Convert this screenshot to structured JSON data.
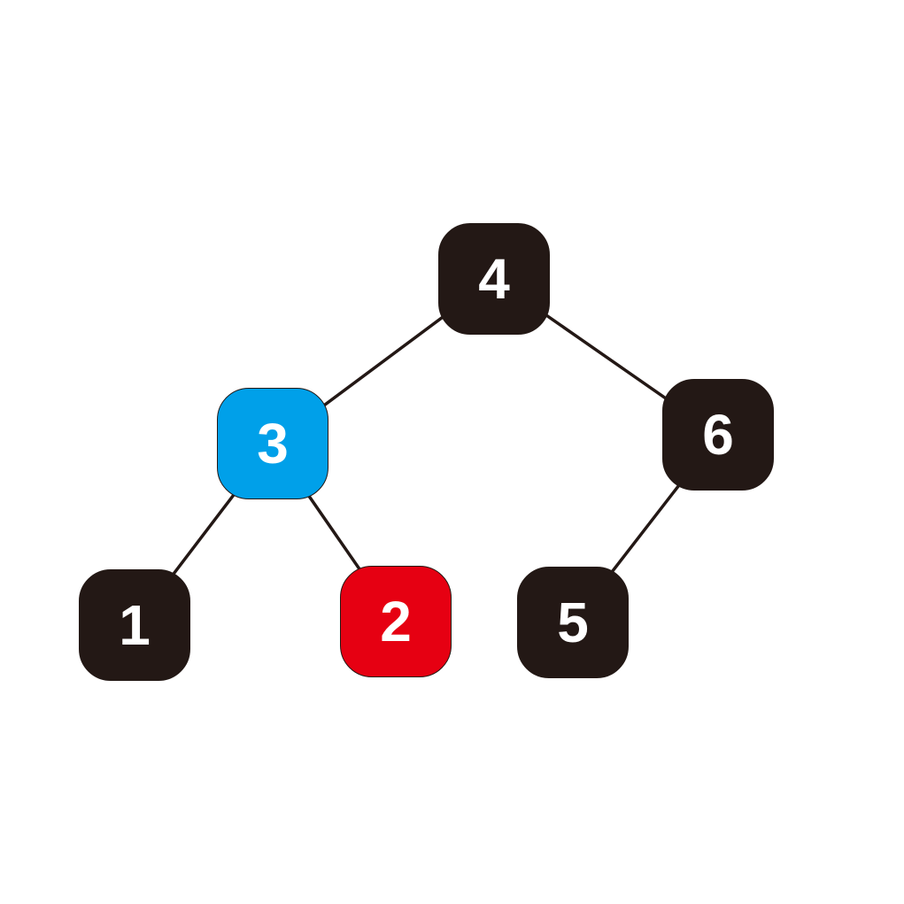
{
  "colors": {
    "default_node": "#231815",
    "highlight_blue": "#00A0E9",
    "highlight_red": "#E60012",
    "edge": "#231815",
    "label": "#FFFFFF"
  },
  "tree": {
    "nodes": [
      {
        "id": "4",
        "label": "4",
        "fill": "#231815"
      },
      {
        "id": "3",
        "label": "3",
        "fill": "#00A0E9"
      },
      {
        "id": "6",
        "label": "6",
        "fill": "#231815"
      },
      {
        "id": "1",
        "label": "1",
        "fill": "#231815"
      },
      {
        "id": "2",
        "label": "2",
        "fill": "#E60012"
      },
      {
        "id": "5",
        "label": "5",
        "fill": "#231815"
      }
    ],
    "edges": [
      {
        "from": "4",
        "to": "3"
      },
      {
        "from": "4",
        "to": "6"
      },
      {
        "from": "3",
        "to": "1"
      },
      {
        "from": "3",
        "to": "2"
      },
      {
        "from": "6",
        "to": "5"
      }
    ]
  }
}
